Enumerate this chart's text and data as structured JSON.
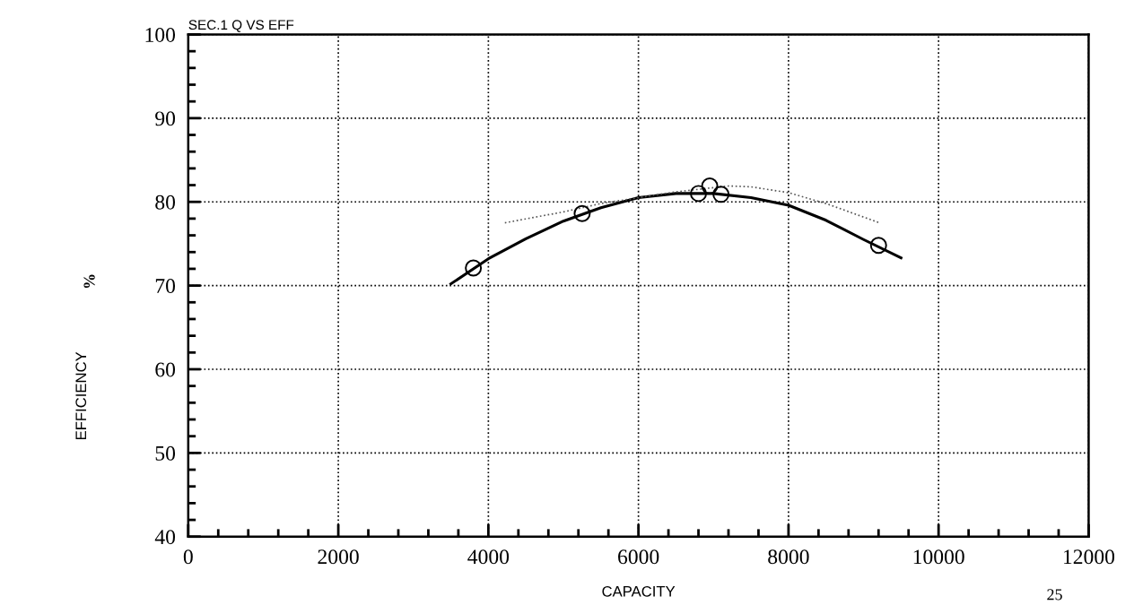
{
  "chart_data": {
    "type": "line",
    "title": "SEC.1 Q VS EFF",
    "xlabel": "CAPACITY",
    "ylabel": "EFFICIENCY",
    "annotations": [
      "%",
      "25"
    ],
    "series": [
      {
        "type": "scatter",
        "color": "#000000",
        "marker": "circle",
        "x": [
          3800,
          5250,
          6800,
          6950,
          7100,
          9200
        ],
        "values": [
          72.1,
          78.6,
          81.0,
          81.9,
          80.9,
          74.8
        ]
      },
      {
        "color": "#000000",
        "line_style": "solid",
        "marker": "none",
        "x": [
          3500,
          4000,
          4500,
          5000,
          5500,
          6000,
          6500,
          7000,
          7500,
          8000,
          8500,
          9000,
          9500
        ],
        "values": [
          70.2,
          73.2,
          75.6,
          77.7,
          79.3,
          80.5,
          81.0,
          81.0,
          80.5,
          79.6,
          77.8,
          75.5,
          73.3
        ]
      },
      {
        "color": "#555555",
        "line_style": "dotted",
        "marker": "none",
        "x": [
          4220,
          5000,
          5500,
          6000,
          6500,
          7000,
          7200,
          7500,
          8000,
          8500,
          9210
        ],
        "values": [
          77.5,
          78.8,
          79.8,
          80.5,
          81.2,
          81.7,
          81.9,
          81.8,
          81.1,
          79.8,
          77.5
        ]
      }
    ],
    "xlim": [
      0,
      12000
    ],
    "xticks": [
      0,
      2000,
      4000,
      6000,
      8000,
      10000,
      12000
    ],
    "ylim": [
      40,
      100
    ],
    "yticks": [
      40,
      50,
      60,
      70,
      80,
      90,
      100
    ],
    "grid": true,
    "legend": false
  }
}
